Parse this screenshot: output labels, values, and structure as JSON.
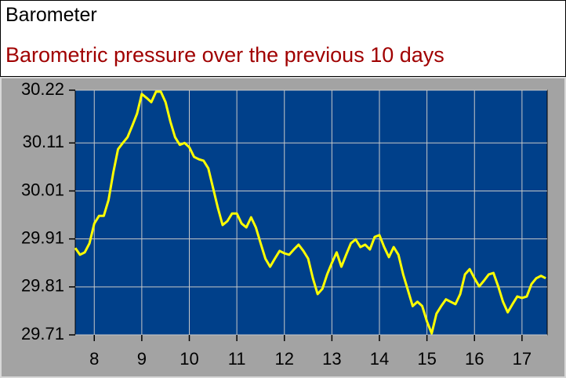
{
  "chart_data": {
    "type": "line",
    "title": "Barometer",
    "subtitle": "Barometric pressure over the previous 10 days",
    "x": [
      7.6,
      7.7,
      7.8,
      7.9,
      8.0,
      8.1,
      8.2,
      8.3,
      8.4,
      8.5,
      8.6,
      8.7,
      8.8,
      8.9,
      9.0,
      9.1,
      9.2,
      9.3,
      9.4,
      9.5,
      9.6,
      9.7,
      9.8,
      9.9,
      10.0,
      10.1,
      10.2,
      10.3,
      10.4,
      10.5,
      10.6,
      10.7,
      10.8,
      10.9,
      11.0,
      11.1,
      11.2,
      11.3,
      11.4,
      11.5,
      11.6,
      11.7,
      11.8,
      11.9,
      12.0,
      12.1,
      12.2,
      12.3,
      12.4,
      12.5,
      12.6,
      12.7,
      12.8,
      12.9,
      13.0,
      13.1,
      13.2,
      13.3,
      13.4,
      13.5,
      13.6,
      13.7,
      13.8,
      13.9,
      14.0,
      14.1,
      14.2,
      14.3,
      14.4,
      14.5,
      14.6,
      14.7,
      14.8,
      14.9,
      15.0,
      15.1,
      15.2,
      15.3,
      15.4,
      15.5,
      15.6,
      15.7,
      15.8,
      15.9,
      16.0,
      16.1,
      16.2,
      16.3,
      16.4,
      16.5,
      16.6,
      16.7,
      16.8,
      16.9,
      17.0,
      17.1,
      17.2,
      17.3,
      17.4,
      17.5
    ],
    "values": [
      29.891,
      29.877,
      29.882,
      29.901,
      29.942,
      29.958,
      29.958,
      29.991,
      30.048,
      30.097,
      30.11,
      30.122,
      30.146,
      30.171,
      30.212,
      30.204,
      30.195,
      30.217,
      30.217,
      30.195,
      30.155,
      30.122,
      30.106,
      30.11,
      30.101,
      30.081,
      30.076,
      30.073,
      30.057,
      30.016,
      29.975,
      29.939,
      29.947,
      29.963,
      29.963,
      29.942,
      29.934,
      29.955,
      29.934,
      29.901,
      29.869,
      29.852,
      29.869,
      29.885,
      29.88,
      29.877,
      29.888,
      29.898,
      29.885,
      29.869,
      29.828,
      29.795,
      29.806,
      29.836,
      29.86,
      29.882,
      29.852,
      29.877,
      29.901,
      29.909,
      29.893,
      29.898,
      29.888,
      29.914,
      29.918,
      29.893,
      29.872,
      29.893,
      29.877,
      29.836,
      29.803,
      29.77,
      29.779,
      29.77,
      29.738,
      29.713,
      29.754,
      29.77,
      29.784,
      29.779,
      29.774,
      29.795,
      29.836,
      29.847,
      29.828,
      29.811,
      29.823,
      29.836,
      29.839,
      29.811,
      29.779,
      29.757,
      29.774,
      29.79,
      29.787,
      29.79,
      29.816,
      29.828,
      29.833,
      29.828
    ],
    "color": "#ffff00",
    "background": "#00408a",
    "xlim": [
      7.6,
      17.53
    ],
    "xticks": [
      8,
      9,
      10,
      11,
      12,
      13,
      14,
      15,
      16,
      17
    ],
    "ylim": [
      29.71,
      30.22
    ],
    "yticks": [
      29.71,
      29.81,
      29.91,
      30.01,
      30.11,
      30.22
    ],
    "grid": true
  }
}
